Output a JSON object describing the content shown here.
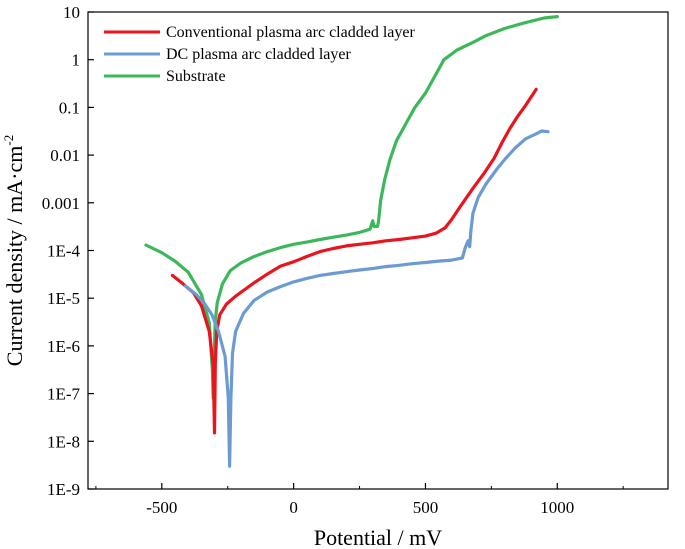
{
  "chart_data": {
    "type": "line",
    "title": "",
    "xlabel": "Potential / mV",
    "ylabel_main": "Current density / mA·cm",
    "ylabel_sup": "-2",
    "y_scale": "log",
    "xlim": [
      -780,
      1420
    ],
    "ylim": [
      1e-09,
      10
    ],
    "x_ticks": [
      -500,
      0,
      500,
      1000
    ],
    "x_tick_labels": [
      "-500",
      "0",
      "500",
      "1000"
    ],
    "y_ticks": [
      1e-09,
      1e-08,
      1e-07,
      1e-06,
      1e-05,
      0.0001,
      0.001,
      0.01,
      0.1,
      1,
      10
    ],
    "y_tick_labels": [
      "1E-9",
      "1E-8",
      "1E-7",
      "1E-6",
      "1E-5",
      "1E-4",
      "0.001",
      "0.01",
      "0.1",
      "1",
      "10"
    ],
    "legend_position": "top-left",
    "series": [
      {
        "name": "Substrate",
        "color": "#3cb85a",
        "points": [
          [
            -560,
            0.00013
          ],
          [
            -500,
            9e-05
          ],
          [
            -450,
            6e-05
          ],
          [
            -400,
            3.5e-05
          ],
          [
            -350,
            1.2e-05
          ],
          [
            -320,
            3e-06
          ],
          [
            -308,
            3e-07
          ],
          [
            -305,
            8e-08
          ],
          [
            -302,
            3e-07
          ],
          [
            -298,
            3e-06
          ],
          [
            -290,
            8e-06
          ],
          [
            -270,
            2e-05
          ],
          [
            -240,
            3.8e-05
          ],
          [
            -200,
            5.5e-05
          ],
          [
            -150,
            7.5e-05
          ],
          [
            -100,
            9.5e-05
          ],
          [
            -50,
            0.000115
          ],
          [
            0,
            0.000135
          ],
          [
            50,
            0.00015
          ],
          [
            100,
            0.00017
          ],
          [
            150,
            0.00019
          ],
          [
            200,
            0.00021
          ],
          [
            250,
            0.00024
          ],
          [
            290,
            0.00028
          ],
          [
            300,
            0.00042
          ],
          [
            305,
            0.00032
          ],
          [
            318,
            0.00032
          ],
          [
            322,
            0.0004
          ],
          [
            330,
            0.0011
          ],
          [
            345,
            0.003
          ],
          [
            365,
            0.008
          ],
          [
            390,
            0.02
          ],
          [
            420,
            0.04
          ],
          [
            460,
            0.1
          ],
          [
            500,
            0.2
          ],
          [
            540,
            0.5
          ],
          [
            570,
            1.0
          ],
          [
            620,
            1.6
          ],
          [
            680,
            2.3
          ],
          [
            730,
            3.2
          ],
          [
            800,
            4.5
          ],
          [
            880,
            6.0
          ],
          [
            950,
            7.5
          ],
          [
            1000,
            8.0
          ]
        ]
      },
      {
        "name": "Conventional plasma arc cladded layer",
        "color": "#e8141e",
        "points": [
          [
            -460,
            3e-05
          ],
          [
            -420,
            2e-05
          ],
          [
            -380,
            1.3e-05
          ],
          [
            -350,
            7e-06
          ],
          [
            -320,
            2e-06
          ],
          [
            -305,
            4e-07
          ],
          [
            -300,
            1.5e-08
          ],
          [
            -297,
            4e-07
          ],
          [
            -292,
            2e-06
          ],
          [
            -280,
            4.5e-06
          ],
          [
            -255,
            7.5e-06
          ],
          [
            -220,
            1.1e-05
          ],
          [
            -180,
            1.6e-05
          ],
          [
            -150,
            2.1e-05
          ],
          [
            -100,
            3.2e-05
          ],
          [
            -50,
            4.7e-05
          ],
          [
            0,
            5.8e-05
          ],
          [
            50,
            7.5e-05
          ],
          [
            100,
            9.5e-05
          ],
          [
            150,
            0.00011
          ],
          [
            200,
            0.000125
          ],
          [
            250,
            0.000135
          ],
          [
            300,
            0.000145
          ],
          [
            350,
            0.00016
          ],
          [
            400,
            0.00017
          ],
          [
            450,
            0.000185
          ],
          [
            500,
            0.0002
          ],
          [
            540,
            0.00023
          ],
          [
            575,
            0.0003
          ],
          [
            600,
            0.00045
          ],
          [
            630,
            0.0008
          ],
          [
            680,
            0.002
          ],
          [
            720,
            0.004
          ],
          [
            760,
            0.0085
          ],
          [
            790,
            0.018
          ],
          [
            820,
            0.036
          ],
          [
            850,
            0.065
          ],
          [
            880,
            0.11
          ],
          [
            920,
            0.24
          ]
        ]
      },
      {
        "name": "DC plasma arc cladded layer",
        "color": "#6c9bd2",
        "points": [
          [
            -410,
            1.8e-05
          ],
          [
            -370,
            1.2e-05
          ],
          [
            -340,
            8e-06
          ],
          [
            -310,
            4.5e-06
          ],
          [
            -285,
            2e-06
          ],
          [
            -260,
            6e-07
          ],
          [
            -248,
            8e-08
          ],
          [
            -243,
            3e-09
          ],
          [
            -238,
            8e-08
          ],
          [
            -232,
            7e-07
          ],
          [
            -220,
            2e-06
          ],
          [
            -190,
            4.8e-06
          ],
          [
            -150,
            9e-06
          ],
          [
            -100,
            1.35e-05
          ],
          [
            -50,
            1.75e-05
          ],
          [
            0,
            2.2e-05
          ],
          [
            50,
            2.6e-05
          ],
          [
            100,
            3e-05
          ],
          [
            150,
            3.3e-05
          ],
          [
            200,
            3.6e-05
          ],
          [
            250,
            3.9e-05
          ],
          [
            300,
            4.2e-05
          ],
          [
            350,
            4.6e-05
          ],
          [
            400,
            4.9e-05
          ],
          [
            450,
            5.3e-05
          ],
          [
            500,
            5.6e-05
          ],
          [
            550,
            6e-05
          ],
          [
            600,
            6.3e-05
          ],
          [
            640,
            7e-05
          ],
          [
            650,
            0.00011
          ],
          [
            655,
            0.00013
          ],
          [
            662,
            0.00016
          ],
          [
            668,
            0.00012
          ],
          [
            672,
            0.00025
          ],
          [
            680,
            0.0006
          ],
          [
            700,
            0.0013
          ],
          [
            730,
            0.0025
          ],
          [
            770,
            0.005
          ],
          [
            800,
            0.008
          ],
          [
            840,
            0.014
          ],
          [
            880,
            0.022
          ],
          [
            920,
            0.028
          ],
          [
            940,
            0.032
          ],
          [
            965,
            0.031
          ]
        ]
      }
    ],
    "legend_order": [
      "Conventional plasma arc cladded layer",
      "DC plasma arc cladded layer",
      "Substrate"
    ]
  }
}
